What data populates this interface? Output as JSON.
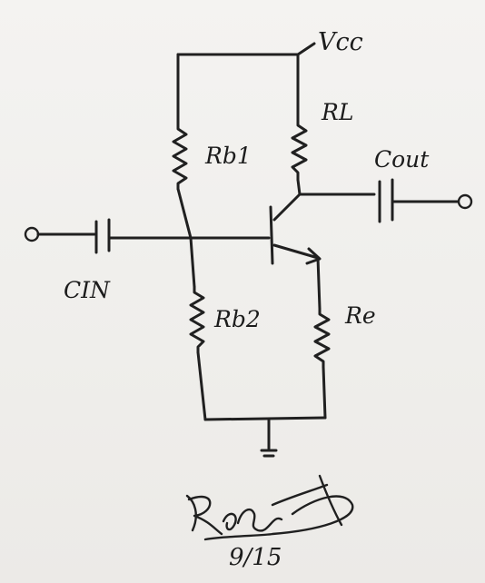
{
  "labels": {
    "vcc": "Vcc",
    "rl": "RL",
    "rb1": "Rb1",
    "cout": "Cout",
    "cin": "CIN",
    "rb2": "Rb2",
    "re": "Re",
    "signature": "Robert",
    "date": "9/15"
  }
}
